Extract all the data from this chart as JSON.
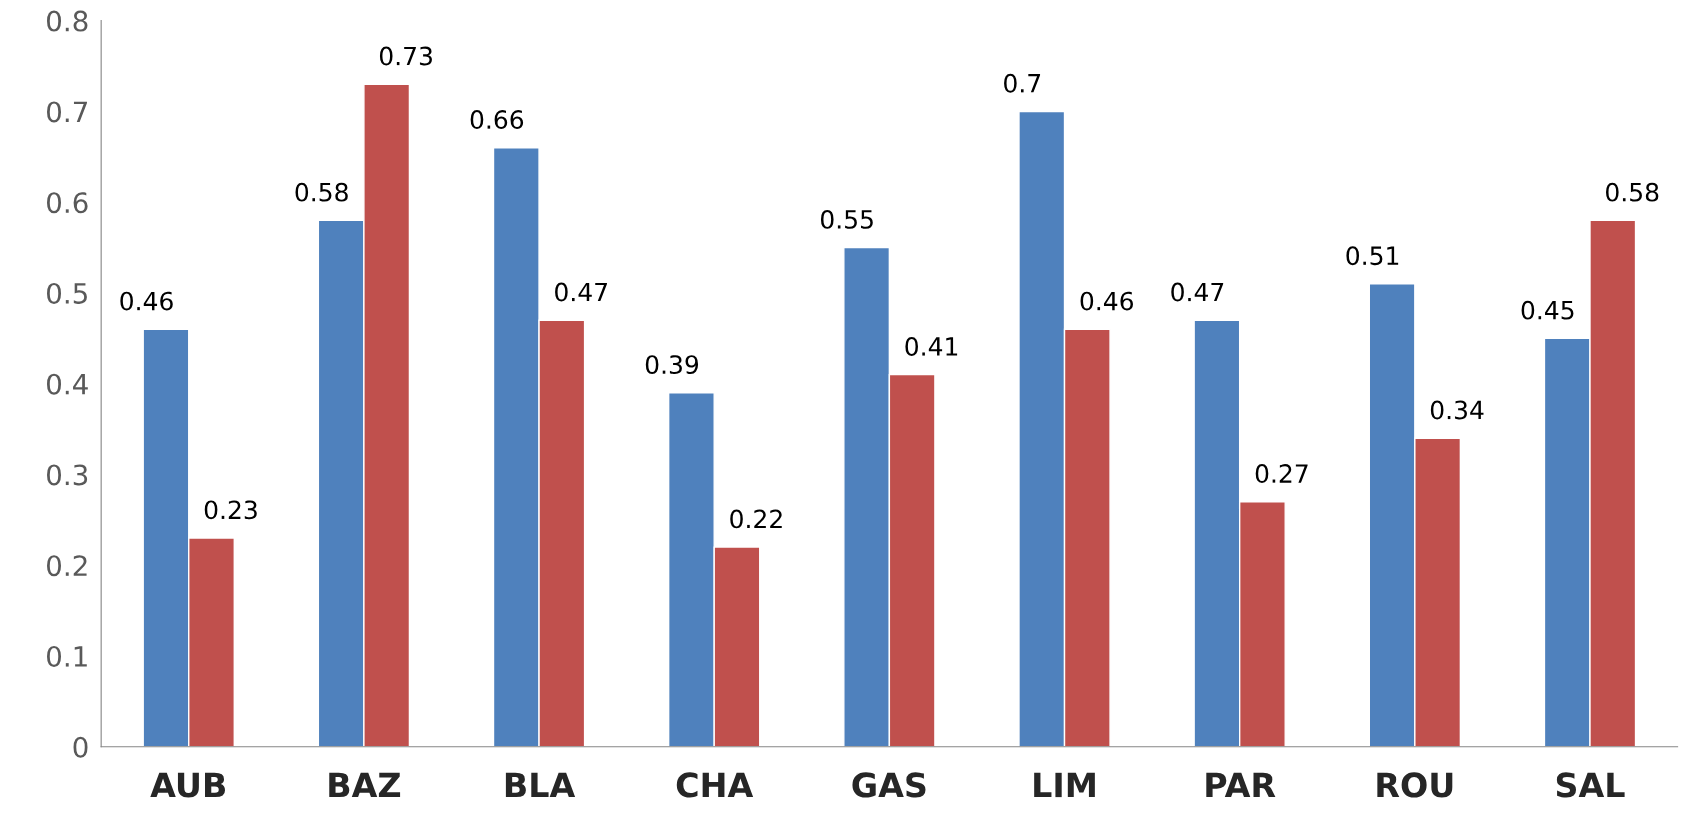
{
  "chart_data": {
    "type": "bar",
    "categories": [
      "AUB",
      "BAZ",
      "BLA",
      "CHA",
      "GAS",
      "LIM",
      "PAR",
      "ROU",
      "SAL"
    ],
    "series": [
      {
        "color": "#4f81bd",
        "values": [
          0.46,
          0.58,
          0.66,
          0.39,
          0.55,
          0.7,
          0.47,
          0.51,
          0.45
        ]
      },
      {
        "color": "#c0504d",
        "values": [
          0.23,
          0.73,
          0.47,
          0.22,
          0.41,
          0.46,
          0.27,
          0.34,
          0.58
        ]
      }
    ],
    "ylim": [
      0,
      0.8
    ],
    "yticks": [
      0,
      0.1,
      0.2,
      0.3,
      0.4,
      0.5,
      0.6,
      0.7,
      0.8
    ],
    "data_labels": true,
    "grid": false
  }
}
